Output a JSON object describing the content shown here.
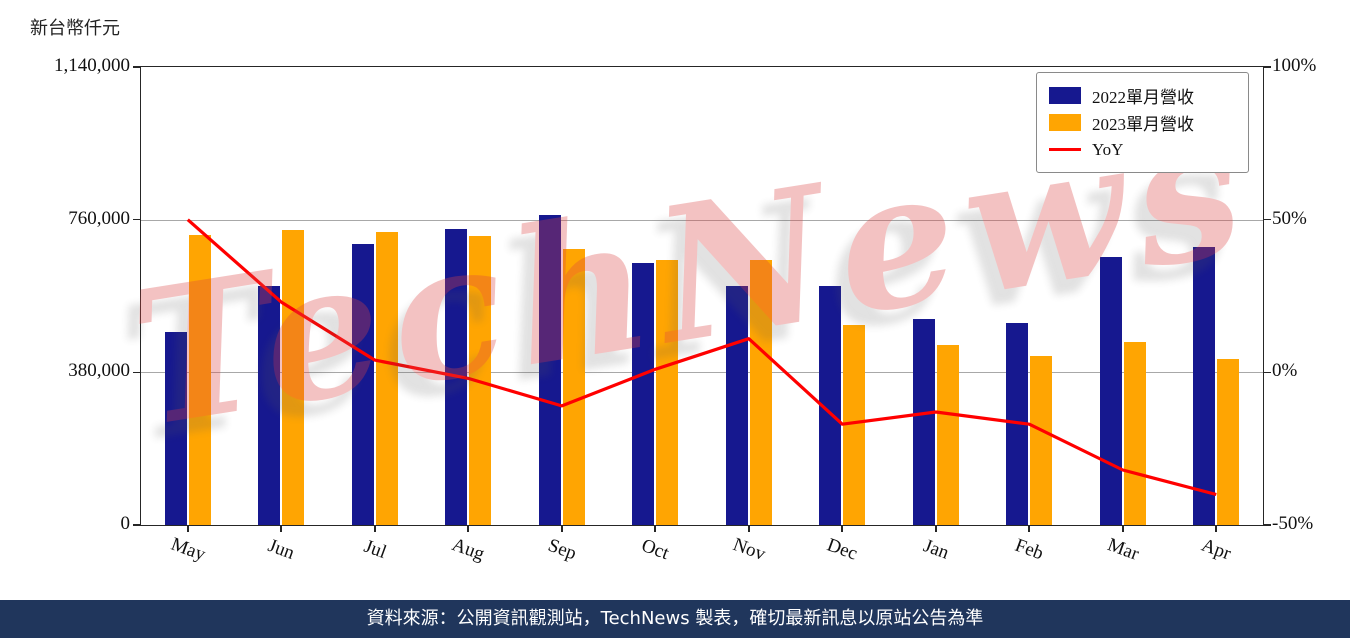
{
  "watermark": "TechNews",
  "footer": {
    "text": "資料來源：公開資訊觀測站，TechNews 製表，確切最新訊息以原站公告為準"
  },
  "colors": {
    "bar_2022": "#16188f",
    "bar_2023": "#ffa502",
    "yoy_line": "#ff0000",
    "footer_bg": "#20365c",
    "watermark_red": "#dd4444"
  },
  "chart_data": {
    "type": "bar",
    "title": "",
    "categories": [
      "May",
      "Jun",
      "Jul",
      "Aug",
      "Sep",
      "Oct",
      "Nov",
      "Dec",
      "Jan",
      "Feb",
      "Mar",
      "Apr"
    ],
    "series": [
      {
        "name": "2022單月營收",
        "type": "bar",
        "axis": "left",
        "color": "#16188f",
        "values": [
          480000,
          596000,
          700000,
          738000,
          772000,
          653000,
          596000,
          596000,
          514000,
          504000,
          668000,
          693000
        ]
      },
      {
        "name": "2023單月營收",
        "type": "bar",
        "axis": "left",
        "color": "#ffa502",
        "values": [
          722000,
          735000,
          730000,
          720000,
          688000,
          660000,
          660000,
          497000,
          447000,
          420000,
          455000,
          412000
        ]
      },
      {
        "name": "YoY",
        "type": "line",
        "axis": "right",
        "color": "#ff0000",
        "values": [
          50,
          23,
          4,
          -2,
          -11,
          1,
          11,
          -17,
          -13,
          -17,
          -32,
          -40
        ]
      }
    ],
    "left_axis": {
      "unit_label": "新台幣仟元",
      "min": 0,
      "max": 1140000,
      "ticks": [
        {
          "label": "0",
          "value": 0
        },
        {
          "label": "380,000",
          "value": 380000
        },
        {
          "label": "760,000",
          "value": 760000
        },
        {
          "label": "1,140,000",
          "value": 1140000
        }
      ]
    },
    "right_axis": {
      "min": -50,
      "max": 100,
      "ticks": [
        {
          "label": "-50%",
          "value": -50
        },
        {
          "label": "0%",
          "value": 0
        },
        {
          "label": "50%",
          "value": 50
        },
        {
          "label": "100%",
          "value": 100
        }
      ]
    },
    "gridline_values": [
      380000,
      760000
    ],
    "grid": true,
    "legend_position": "upper right"
  }
}
